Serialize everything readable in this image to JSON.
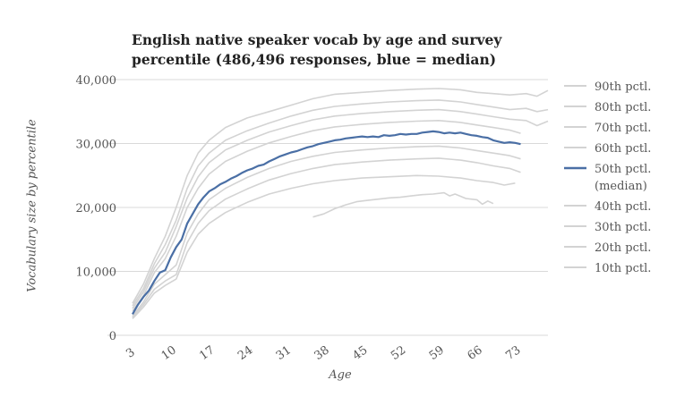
{
  "chart_data": {
    "type": "line",
    "title": "English native speaker vocab by age and survey percentile (486,496 responses, blue = median)",
    "title_lines": [
      "English native speaker vocab by age and survey",
      "percentile (486,496 responses, blue = median)"
    ],
    "xlabel": "Age",
    "ylabel": "Vocabulary size by percentile",
    "xlim": [
      3,
      79
    ],
    "ylim": [
      0,
      40000
    ],
    "x_ticks": [
      3,
      10,
      17,
      24,
      31,
      38,
      45,
      52,
      59,
      66,
      73
    ],
    "y_ticks": [
      0,
      10000,
      20000,
      30000,
      40000
    ],
    "y_tick_labels": [
      "0",
      "10,000",
      "20,000",
      "30,000",
      "40,000"
    ],
    "grid": "horizontal",
    "legend_position": "right",
    "colors": {
      "median": "#4a6fa5",
      "other": "#d3d3d3",
      "grid": "#d9d9d9"
    },
    "series": [
      {
        "name": "90th pctl.",
        "highlight": false,
        "points": [
          [
            3,
            5000
          ],
          [
            5,
            8000
          ],
          [
            7,
            12000
          ],
          [
            9,
            15500
          ],
          [
            11,
            20000
          ],
          [
            13,
            25000
          ],
          [
            15,
            28500
          ],
          [
            17,
            30500
          ],
          [
            20,
            32500
          ],
          [
            24,
            34000
          ],
          [
            28,
            35000
          ],
          [
            32,
            36000
          ],
          [
            36,
            37000
          ],
          [
            40,
            37700
          ],
          [
            45,
            38000
          ],
          [
            50,
            38300
          ],
          [
            55,
            38500
          ],
          [
            59,
            38600
          ],
          [
            63,
            38400
          ],
          [
            66,
            38000
          ],
          [
            69,
            37800
          ],
          [
            72,
            37600
          ],
          [
            75,
            37800
          ],
          [
            77,
            37400
          ],
          [
            79,
            38300
          ]
        ]
      },
      {
        "name": "80th pctl.",
        "highlight": false,
        "points": [
          [
            3,
            4600
          ],
          [
            5,
            7300
          ],
          [
            7,
            11200
          ],
          [
            9,
            14200
          ],
          [
            11,
            18000
          ],
          [
            13,
            23000
          ],
          [
            15,
            26500
          ],
          [
            17,
            28500
          ],
          [
            20,
            30500
          ],
          [
            24,
            32000
          ],
          [
            28,
            33200
          ],
          [
            32,
            34300
          ],
          [
            36,
            35200
          ],
          [
            40,
            35800
          ],
          [
            45,
            36200
          ],
          [
            50,
            36500
          ],
          [
            55,
            36700
          ],
          [
            59,
            36800
          ],
          [
            63,
            36500
          ],
          [
            66,
            36100
          ],
          [
            69,
            35700
          ],
          [
            72,
            35300
          ],
          [
            75,
            35500
          ],
          [
            77,
            35000
          ],
          [
            79,
            35300
          ]
        ]
      },
      {
        "name": "70th pctl.",
        "highlight": false,
        "points": [
          [
            3,
            4200
          ],
          [
            5,
            6800
          ],
          [
            7,
            10500
          ],
          [
            9,
            13000
          ],
          [
            11,
            17000
          ],
          [
            13,
            21500
          ],
          [
            15,
            24800
          ],
          [
            17,
            27000
          ],
          [
            20,
            29000
          ],
          [
            24,
            30500
          ],
          [
            28,
            31800
          ],
          [
            32,
            32800
          ],
          [
            36,
            33700
          ],
          [
            40,
            34300
          ],
          [
            45,
            34700
          ],
          [
            50,
            35000
          ],
          [
            55,
            35200
          ],
          [
            59,
            35300
          ],
          [
            63,
            35000
          ],
          [
            66,
            34600
          ],
          [
            69,
            34200
          ],
          [
            72,
            33800
          ],
          [
            75,
            33600
          ],
          [
            77,
            32800
          ],
          [
            79,
            33500
          ]
        ]
      },
      {
        "name": "60th pctl.",
        "highlight": false,
        "points": [
          [
            3,
            3800
          ],
          [
            5,
            6200
          ],
          [
            7,
            9800
          ],
          [
            9,
            12000
          ],
          [
            11,
            15500
          ],
          [
            13,
            20000
          ],
          [
            15,
            23000
          ],
          [
            17,
            25200
          ],
          [
            20,
            27200
          ],
          [
            24,
            28800
          ],
          [
            28,
            30100
          ],
          [
            32,
            31100
          ],
          [
            36,
            32000
          ],
          [
            40,
            32600
          ],
          [
            45,
            33000
          ],
          [
            50,
            33300
          ],
          [
            55,
            33500
          ],
          [
            59,
            33600
          ],
          [
            63,
            33300
          ],
          [
            66,
            32900
          ],
          [
            69,
            32500
          ],
          [
            72,
            32100
          ],
          [
            74,
            31600
          ]
        ]
      },
      {
        "name": "50th pctl.",
        "label_line2": "(median)",
        "highlight": true,
        "points": [
          [
            3,
            3300
          ],
          [
            4,
            4800
          ],
          [
            5,
            6000
          ],
          [
            6,
            7000
          ],
          [
            7,
            8500
          ],
          [
            8,
            9800
          ],
          [
            9,
            10200
          ],
          [
            10,
            12200
          ],
          [
            11,
            13800
          ],
          [
            12,
            15000
          ],
          [
            13,
            17500
          ],
          [
            14,
            19000
          ],
          [
            15,
            20500
          ],
          [
            16,
            21600
          ],
          [
            17,
            22500
          ],
          [
            18,
            23000
          ],
          [
            19,
            23600
          ],
          [
            20,
            24000
          ],
          [
            21,
            24500
          ],
          [
            22,
            24900
          ],
          [
            23,
            25400
          ],
          [
            24,
            25800
          ],
          [
            25,
            26100
          ],
          [
            26,
            26500
          ],
          [
            27,
            26700
          ],
          [
            28,
            27200
          ],
          [
            29,
            27600
          ],
          [
            30,
            28000
          ],
          [
            31,
            28300
          ],
          [
            32,
            28600
          ],
          [
            33,
            28800
          ],
          [
            34,
            29100
          ],
          [
            35,
            29400
          ],
          [
            36,
            29600
          ],
          [
            37,
            29900
          ],
          [
            38,
            30100
          ],
          [
            39,
            30300
          ],
          [
            40,
            30500
          ],
          [
            41,
            30600
          ],
          [
            42,
            30800
          ],
          [
            43,
            30900
          ],
          [
            44,
            31000
          ],
          [
            45,
            31100
          ],
          [
            46,
            31000
          ],
          [
            47,
            31100
          ],
          [
            48,
            31000
          ],
          [
            49,
            31300
          ],
          [
            50,
            31200
          ],
          [
            51,
            31300
          ],
          [
            52,
            31500
          ],
          [
            53,
            31400
          ],
          [
            54,
            31500
          ],
          [
            55,
            31500
          ],
          [
            56,
            31700
          ],
          [
            57,
            31800
          ],
          [
            58,
            31900
          ],
          [
            59,
            31800
          ],
          [
            60,
            31600
          ],
          [
            61,
            31700
          ],
          [
            62,
            31600
          ],
          [
            63,
            31700
          ],
          [
            64,
            31500
          ],
          [
            65,
            31300
          ],
          [
            66,
            31200
          ],
          [
            67,
            31000
          ],
          [
            68,
            30900
          ],
          [
            69,
            30500
          ],
          [
            70,
            30300
          ],
          [
            71,
            30100
          ],
          [
            72,
            30200
          ],
          [
            73,
            30100
          ],
          [
            74,
            29900
          ]
        ]
      },
      {
        "name": "40th pctl.",
        "highlight": false,
        "points": [
          [
            3,
            3000
          ],
          [
            5,
            5200
          ],
          [
            7,
            8000
          ],
          [
            9,
            9500
          ],
          [
            11,
            11000
          ],
          [
            13,
            16000
          ],
          [
            15,
            19000
          ],
          [
            17,
            21200
          ],
          [
            20,
            23000
          ],
          [
            24,
            24700
          ],
          [
            28,
            26100
          ],
          [
            32,
            27200
          ],
          [
            36,
            28000
          ],
          [
            40,
            28600
          ],
          [
            45,
            29000
          ],
          [
            50,
            29300
          ],
          [
            55,
            29500
          ],
          [
            59,
            29600
          ],
          [
            63,
            29300
          ],
          [
            66,
            28900
          ],
          [
            69,
            28500
          ],
          [
            72,
            28100
          ],
          [
            74,
            27600
          ]
        ]
      },
      {
        "name": "30th pctl.",
        "highlight": false,
        "points": [
          [
            3,
            2800
          ],
          [
            5,
            4800
          ],
          [
            7,
            7200
          ],
          [
            9,
            8500
          ],
          [
            11,
            9500
          ],
          [
            13,
            14500
          ],
          [
            15,
            17500
          ],
          [
            17,
            19500
          ],
          [
            20,
            21300
          ],
          [
            24,
            22900
          ],
          [
            28,
            24300
          ],
          [
            32,
            25300
          ],
          [
            36,
            26100
          ],
          [
            40,
            26700
          ],
          [
            45,
            27100
          ],
          [
            50,
            27400
          ],
          [
            55,
            27600
          ],
          [
            59,
            27700
          ],
          [
            63,
            27400
          ],
          [
            66,
            27000
          ],
          [
            69,
            26500
          ],
          [
            72,
            26100
          ],
          [
            74,
            25500
          ]
        ]
      },
      {
        "name": "20th pctl.",
        "highlight": false,
        "points": [
          [
            3,
            2600
          ],
          [
            5,
            4400
          ],
          [
            7,
            6600
          ],
          [
            9,
            7800
          ],
          [
            11,
            8800
          ],
          [
            13,
            13000
          ],
          [
            15,
            15800
          ],
          [
            17,
            17500
          ],
          [
            20,
            19200
          ],
          [
            24,
            20800
          ],
          [
            28,
            22100
          ],
          [
            32,
            23000
          ],
          [
            36,
            23700
          ],
          [
            40,
            24200
          ],
          [
            45,
            24600
          ],
          [
            50,
            24800
          ],
          [
            55,
            25000
          ],
          [
            59,
            24900
          ],
          [
            63,
            24600
          ],
          [
            66,
            24200
          ],
          [
            69,
            23900
          ],
          [
            71,
            23500
          ],
          [
            73,
            23800
          ]
        ]
      },
      {
        "name": "10th pctl.",
        "highlight": false,
        "points": [
          [
            36,
            18500
          ],
          [
            38,
            19000
          ],
          [
            40,
            19800
          ],
          [
            42,
            20400
          ],
          [
            44,
            20900
          ],
          [
            46,
            21100
          ],
          [
            48,
            21300
          ],
          [
            50,
            21500
          ],
          [
            52,
            21600
          ],
          [
            54,
            21800
          ],
          [
            56,
            22000
          ],
          [
            58,
            22100
          ],
          [
            60,
            22300
          ],
          [
            61,
            21800
          ],
          [
            62,
            22100
          ],
          [
            64,
            21400
          ],
          [
            66,
            21200
          ],
          [
            67,
            20500
          ],
          [
            68,
            21000
          ],
          [
            69,
            20600
          ]
        ]
      }
    ]
  }
}
